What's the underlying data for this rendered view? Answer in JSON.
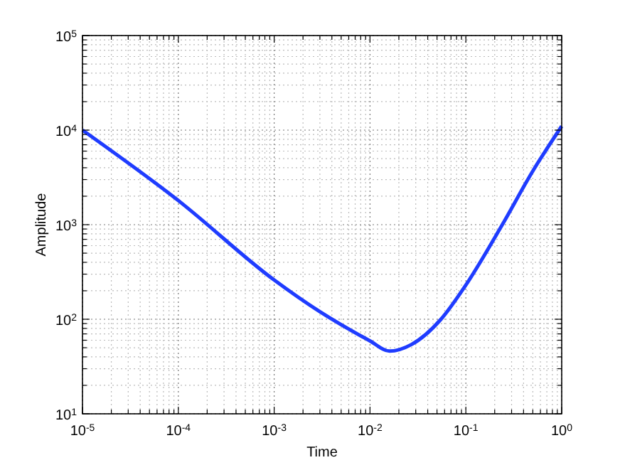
{
  "chart_data": {
    "type": "line",
    "xlabel": "Time",
    "ylabel": "Amplitude",
    "log": "xy",
    "grid": true,
    "line_style": "solid",
    "marker": "none",
    "x": [
      1e-05,
      0.0001,
      0.001,
      0.003,
      0.01,
      0.016,
      0.027,
      0.055,
      0.1,
      0.24,
      0.5,
      1
    ],
    "series": [
      {
        "color": "#1f3cff",
        "values": [
          10000,
          1800,
          260,
          120,
          59,
          46,
          54,
          100,
          230,
          1000,
          3700,
          11000
        ]
      }
    ],
    "xlim": [
      1e-05,
      1
    ],
    "ylim": [
      10,
      100000
    ],
    "xticks": [
      {
        "value": 1e-05,
        "label": "10$^{-5}$"
      },
      {
        "value": 2e-05,
        "label": null
      },
      {
        "value": 3e-05,
        "label": null
      },
      {
        "value": 4e-05,
        "label": null
      },
      {
        "value": 5e-05,
        "label": null
      },
      {
        "value": 6e-05,
        "label": null
      },
      {
        "value": 7e-05,
        "label": null
      },
      {
        "value": 8e-05,
        "label": null
      },
      {
        "value": 9e-05,
        "label": null
      },
      {
        "value": 0.0001,
        "label": "10$^{-4}$"
      },
      {
        "value": 0.0002,
        "label": null
      },
      {
        "value": 0.0003,
        "label": null
      },
      {
        "value": 0.0004,
        "label": null
      },
      {
        "value": 0.0005,
        "label": null
      },
      {
        "value": 0.0006,
        "label": null
      },
      {
        "value": 0.0007,
        "label": null
      },
      {
        "value": 0.0008,
        "label": null
      },
      {
        "value": 0.0009,
        "label": null
      },
      {
        "value": 0.001,
        "label": "10$^{-3}$"
      },
      {
        "value": 0.002,
        "label": null
      },
      {
        "value": 0.003,
        "label": null
      },
      {
        "value": 0.004,
        "label": null
      },
      {
        "value": 0.005,
        "label": null
      },
      {
        "value": 0.006,
        "label": null
      },
      {
        "value": 0.007,
        "label": null
      },
      {
        "value": 0.008,
        "label": null
      },
      {
        "value": 0.009,
        "label": null
      },
      {
        "value": 0.01,
        "label": "10$^{-2}$"
      },
      {
        "value": 0.02,
        "label": null
      },
      {
        "value": 0.03,
        "label": null
      },
      {
        "value": 0.04,
        "label": null
      },
      {
        "value": 0.05,
        "label": null
      },
      {
        "value": 0.06,
        "label": null
      },
      {
        "value": 0.07,
        "label": null
      },
      {
        "value": 0.08,
        "label": null
      },
      {
        "value": 0.09,
        "label": null
      },
      {
        "value": 0.1,
        "label": "10$^{-1}$"
      },
      {
        "value": 0.2,
        "label": null
      },
      {
        "value": 0.3,
        "label": null
      },
      {
        "value": 0.4,
        "label": null
      },
      {
        "value": 0.5,
        "label": null
      },
      {
        "value": 0.6,
        "label": null
      },
      {
        "value": 0.7,
        "label": null
      },
      {
        "value": 0.8,
        "label": null
      },
      {
        "value": 0.9,
        "label": null
      },
      {
        "value": 1,
        "label": "10$^{0}$"
      }
    ],
    "yticks": [
      {
        "value": 10,
        "label": "10$^{1}$"
      },
      {
        "value": 20,
        "label": null
      },
      {
        "value": 30,
        "label": null
      },
      {
        "value": 40,
        "label": null
      },
      {
        "value": 50,
        "label": null
      },
      {
        "value": 60,
        "label": null
      },
      {
        "value": 70,
        "label": null
      },
      {
        "value": 80,
        "label": null
      },
      {
        "value": 90,
        "label": null
      },
      {
        "value": 100,
        "label": "10$^{2}$"
      },
      {
        "value": 200,
        "label": null
      },
      {
        "value": 300,
        "label": null
      },
      {
        "value": 400,
        "label": null
      },
      {
        "value": 500,
        "label": null
      },
      {
        "value": 600,
        "label": null
      },
      {
        "value": 700,
        "label": null
      },
      {
        "value": 800,
        "label": null
      },
      {
        "value": 900,
        "label": null
      },
      {
        "value": 1000,
        "label": "10$^{3}$"
      },
      {
        "value": 2000,
        "label": null
      },
      {
        "value": 3000,
        "label": null
      },
      {
        "value": 4000,
        "label": null
      },
      {
        "value": 5000,
        "label": null
      },
      {
        "value": 6000,
        "label": null
      },
      {
        "value": 7000,
        "label": null
      },
      {
        "value": 8000,
        "label": null
      },
      {
        "value": 9000,
        "label": null
      },
      {
        "value": 10000,
        "label": "10$^{4}$"
      },
      {
        "value": 20000,
        "label": null
      },
      {
        "value": 30000,
        "label": null
      },
      {
        "value": 40000,
        "label": null
      },
      {
        "value": 50000,
        "label": null
      },
      {
        "value": 60000,
        "label": null
      },
      {
        "value": 70000,
        "label": null
      },
      {
        "value": 80000,
        "label": null
      },
      {
        "value": 90000,
        "label": null
      },
      {
        "value": 100000,
        "label": "10$^{5}$"
      }
    ]
  }
}
